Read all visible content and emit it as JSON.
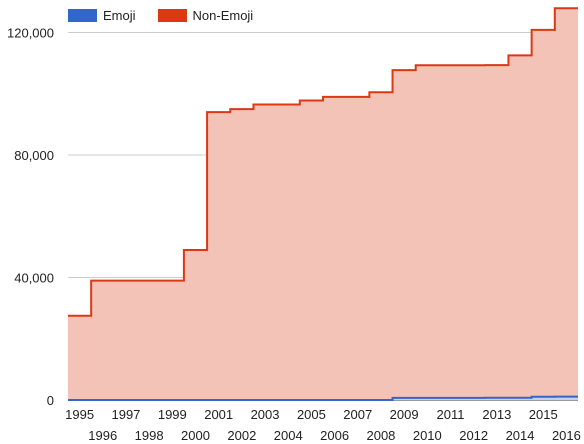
{
  "chart_data": {
    "type": "area",
    "step": true,
    "stacked": true,
    "x": [
      1995,
      1996,
      1997,
      1998,
      1999,
      2000,
      2001,
      2002,
      2003,
      2004,
      2005,
      2006,
      2007,
      2008,
      2009,
      2010,
      2011,
      2012,
      2013,
      2014,
      2015,
      2016
    ],
    "series": [
      {
        "name": "Emoji",
        "color": "#3366cc",
        "values": [
          0,
          0,
          0,
          0,
          0,
          0,
          0,
          0,
          0,
          0,
          0,
          0,
          0,
          0,
          700,
          700,
          700,
          700,
          730,
          750,
          1050,
          1100
        ]
      },
      {
        "name": "Non-Emoji",
        "color": "#dc3912",
        "fill": "#f4c3b8",
        "values": [
          27500,
          39000,
          39000,
          39000,
          39000,
          49000,
          94000,
          95000,
          96500,
          96500,
          97800,
          99000,
          99000,
          100500,
          107000,
          108600,
          108600,
          108600,
          108600,
          111800,
          119800,
          126800
        ]
      }
    ],
    "ylim": [
      0,
      128000
    ],
    "yticks": [
      0,
      40000,
      80000,
      120000
    ],
    "ytick_labels": [
      "0",
      "40,000",
      "80,000",
      "120,000"
    ],
    "xtick_labels": [
      "1995",
      "1996",
      "1997",
      "1998",
      "1999",
      "2000",
      "2001",
      "2002",
      "2003",
      "2004",
      "2005",
      "2006",
      "2007",
      "2008",
      "2009",
      "2010",
      "2011",
      "2012",
      "2013",
      "2014",
      "2015",
      "2016"
    ],
    "grid": true,
    "legend_position": "top-left",
    "title": "",
    "xlabel": "",
    "ylabel": ""
  }
}
